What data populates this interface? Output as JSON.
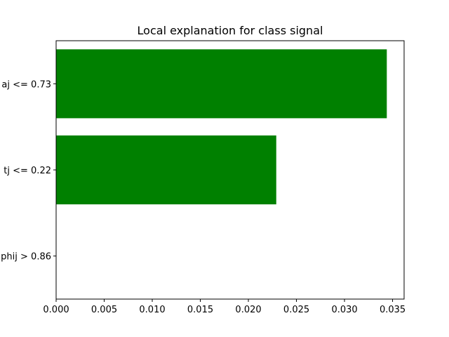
{
  "chart_data": {
    "type": "bar",
    "orientation": "horizontal",
    "title": "Local explanation for class signal",
    "xlabel": "",
    "ylabel": "",
    "categories": [
      "aj <= 0.73",
      "tj <= 0.22",
      "phij > 0.86"
    ],
    "values": [
      0.0344,
      0.0229,
      0.0
    ],
    "xlim": [
      0.0,
      0.0362
    ],
    "xticks": [
      "0.000",
      "0.005",
      "0.010",
      "0.015",
      "0.020",
      "0.025",
      "0.030",
      "0.035"
    ],
    "bar_color": "#008000",
    "grid": false,
    "legend": "none"
  }
}
